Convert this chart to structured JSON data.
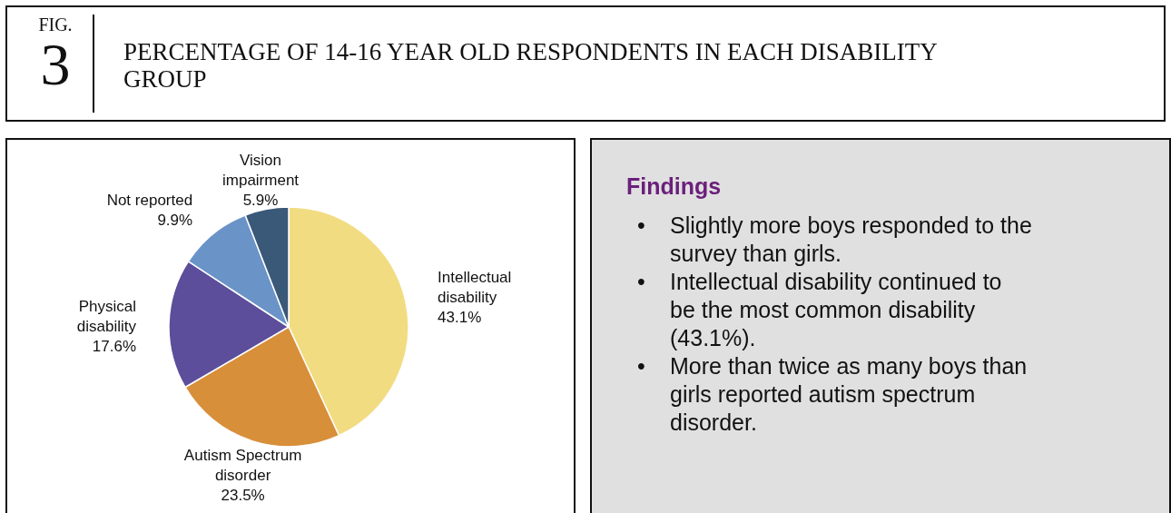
{
  "chart_data": [
    {
      "type": "pie",
      "title": "PERCENTAGE OF 14-16 YEAR OLD RESPONDENTS IN EACH DISABILITY GROUP",
      "annotations": [
        "FIG.",
        "3"
      ],
      "categories": [
        "Intellectual disability",
        "Autism Spectrum disorder",
        "Physical disability",
        "Not reported",
        "Vision impairment"
      ],
      "values": [
        43.1,
        23.5,
        17.6,
        9.9,
        5.9
      ],
      "value_labels": [
        "43.1%",
        "23.5%",
        "17.6%",
        "9.9%",
        "5.9%"
      ],
      "colors": [
        "#f2dc82",
        "#d88f3a",
        "#5c4e9a",
        "#6a94c8",
        "#3a5878"
      ]
    },
    {
      "type": "other",
      "title": "Findings",
      "annotations": [
        "• Slightly more boys responded to the survey than girls.",
        "• Intellectual disability continued to be the most common disability (43.1%).",
        "• More than twice as many boys than girls reported autism spectrum disorder."
      ]
    }
  ]
}
